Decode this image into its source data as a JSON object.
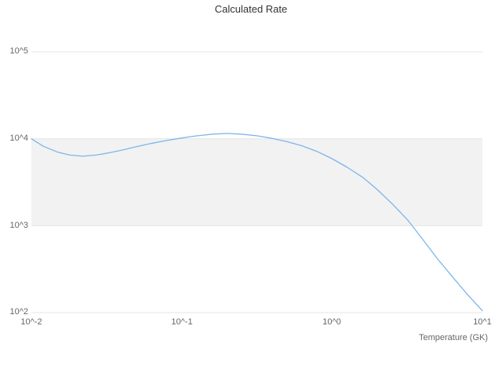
{
  "chart": {
    "title": "Calculated Rate",
    "x_axis_label": "Temperature (GK)",
    "y_tick_labels": [
      "10^5",
      "10^4",
      "10^3",
      "10^2"
    ],
    "x_tick_labels": [
      "10^-2",
      "10^-1",
      "10^0",
      "10^1"
    ],
    "line_color": "#7cb5ec",
    "band_color": "#f2f2f2",
    "grid_color": "#e6e6e6"
  },
  "chart_data": {
    "type": "line",
    "title": "Calculated Rate",
    "xlabel": "Temperature (GK)",
    "ylabel": "",
    "x_scale": "log",
    "y_scale": "log",
    "xlim": [
      0.01,
      10
    ],
    "ylim": [
      100,
      100000
    ],
    "grid": "horizontal-decades",
    "legend": "none",
    "band_y_range": [
      1000,
      10000
    ],
    "series": [
      {
        "name": "Calculated Rate",
        "points": [
          [
            0.01,
            10000
          ],
          [
            0.012,
            8200
          ],
          [
            0.015,
            7000
          ],
          [
            0.018,
            6500
          ],
          [
            0.022,
            6300
          ],
          [
            0.027,
            6500
          ],
          [
            0.033,
            6900
          ],
          [
            0.04,
            7400
          ],
          [
            0.05,
            8100
          ],
          [
            0.062,
            8800
          ],
          [
            0.078,
            9500
          ],
          [
            0.1,
            10200
          ],
          [
            0.125,
            10800
          ],
          [
            0.16,
            11300
          ],
          [
            0.2,
            11500
          ],
          [
            0.25,
            11300
          ],
          [
            0.32,
            10800
          ],
          [
            0.4,
            10100
          ],
          [
            0.5,
            9300
          ],
          [
            0.63,
            8300
          ],
          [
            0.8,
            7100
          ],
          [
            1.0,
            5900
          ],
          [
            1.26,
            4700
          ],
          [
            1.6,
            3600
          ],
          [
            2.0,
            2600
          ],
          [
            2.5,
            1800
          ],
          [
            3.2,
            1150
          ],
          [
            4.0,
            700
          ],
          [
            5.0,
            420
          ],
          [
            6.3,
            260
          ],
          [
            8.0,
            160
          ],
          [
            10.0,
            105
          ]
        ]
      }
    ]
  }
}
